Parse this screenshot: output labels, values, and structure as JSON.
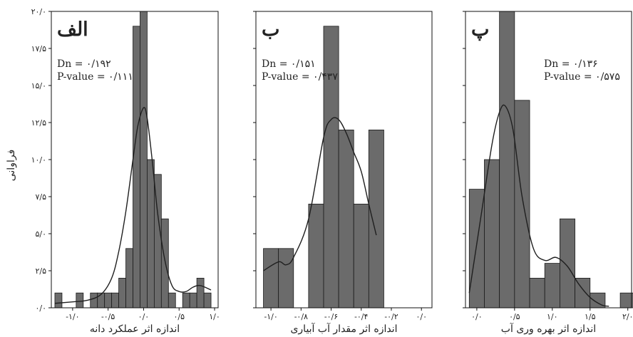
{
  "y_axis": {
    "title": "فراوانی",
    "ylim": [
      0,
      20
    ],
    "ticks": [
      0,
      2.5,
      5,
      7.5,
      10,
      12.5,
      15,
      17.5,
      20
    ],
    "tick_labels": [
      "۰/۰",
      "۲/۵",
      "۵/۰",
      "۷/۵",
      "۱۰/۰",
      "۱۲/۵",
      "۱۵/۰",
      "۱۷/۵",
      "۲۰/۰"
    ]
  },
  "chart_data": [
    {
      "type": "bar",
      "panel": "الف",
      "dn_label": "Dn = ۰/۱۹۲",
      "pvalue_label": "P-value = ۰/۱۱۱",
      "xlabel": "اندازه اثر عملکرد دانه",
      "xlim": [
        -1.3,
        1.05
      ],
      "ylim": [
        0,
        20
      ],
      "x_ticks": [
        -1.0,
        -0.5,
        0.0,
        0.5,
        1.0
      ],
      "x_tick_labels": [
        "-۱/۰",
        "-۰/۵",
        "۰/۰",
        "۰/۵",
        "۱/۰"
      ],
      "bin_width": 0.1,
      "bins": [
        {
          "start": -1.25,
          "value": 1
        },
        {
          "start": -1.15,
          "value": 0
        },
        {
          "start": -1.05,
          "value": 0
        },
        {
          "start": -0.95,
          "value": 1
        },
        {
          "start": -0.85,
          "value": 0
        },
        {
          "start": -0.75,
          "value": 1
        },
        {
          "start": -0.65,
          "value": 1
        },
        {
          "start": -0.55,
          "value": 1
        },
        {
          "start": -0.45,
          "value": 1
        },
        {
          "start": -0.35,
          "value": 2
        },
        {
          "start": -0.25,
          "value": 4
        },
        {
          "start": -0.15,
          "value": 19
        },
        {
          "start": -0.05,
          "value": 20
        },
        {
          "start": 0.05,
          "value": 10
        },
        {
          "start": 0.15,
          "value": 9
        },
        {
          "start": 0.25,
          "value": 6
        },
        {
          "start": 0.35,
          "value": 1
        },
        {
          "start": 0.45,
          "value": 0
        },
        {
          "start": 0.55,
          "value": 1
        },
        {
          "start": 0.65,
          "value": 1
        },
        {
          "start": 0.75,
          "value": 2
        },
        {
          "start": 0.85,
          "value": 1
        }
      ],
      "density_curve": {
        "x": [
          -1.25,
          -1.0,
          -0.8,
          -0.6,
          -0.45,
          -0.35,
          -0.25,
          -0.15,
          -0.08,
          0.0,
          0.05,
          0.12,
          0.2,
          0.3,
          0.4,
          0.5,
          0.6,
          0.7,
          0.8,
          0.95
        ],
        "y": [
          0.3,
          0.4,
          0.5,
          0.9,
          2.0,
          3.8,
          6.5,
          10.0,
          12.3,
          13.5,
          12.8,
          10.0,
          6.3,
          3.2,
          1.5,
          1.1,
          1.1,
          1.4,
          1.5,
          1.2
        ]
      }
    },
    {
      "type": "bar",
      "panel": "ب",
      "dn_label": "Dn = ۰/۱۵۱",
      "pvalue_label": "P-value = ۰/۴۳۷",
      "xlabel": "اندازه اثر مقدار آب آبیاری",
      "xlim": [
        -1.1,
        0.07
      ],
      "ylim": [
        0,
        20
      ],
      "x_ticks": [
        -1.0,
        -0.8,
        -0.6,
        -0.4,
        -0.2,
        0.0
      ],
      "x_tick_labels": [
        "-۱/۰",
        "-۰/۸",
        "-۰/۶",
        "-۰/۴",
        "-۰/۲",
        "۰/۰"
      ],
      "bin_width": 0.1,
      "bins": [
        {
          "start": -1.05,
          "value": 4
        },
        {
          "start": -0.95,
          "value": 4
        },
        {
          "start": -0.85,
          "value": 0
        },
        {
          "start": -0.75,
          "value": 7
        },
        {
          "start": -0.65,
          "value": 19
        },
        {
          "start": -0.55,
          "value": 12
        },
        {
          "start": -0.45,
          "value": 7
        },
        {
          "start": -0.35,
          "value": 12
        }
      ],
      "density_curve": {
        "x": [
          -1.05,
          -0.95,
          -0.9,
          -0.85,
          -0.75,
          -0.65,
          -0.6,
          -0.55,
          -0.5,
          -0.45,
          -0.4,
          -0.35,
          -0.3
        ],
        "y": [
          2.5,
          3.1,
          2.9,
          3.4,
          6.0,
          11.5,
          12.7,
          12.7,
          11.8,
          10.5,
          9.2,
          7.0,
          4.9
        ]
      }
    },
    {
      "type": "bar",
      "panel": "پ",
      "dn_label": "Dn = ۰/۱۳۶",
      "pvalue_label": "P-value = ۰/۵۷۵",
      "xlabel": "اندازه اثر بهره وری آب",
      "xlim": [
        -0.15,
        2.05
      ],
      "ylim": [
        0,
        20
      ],
      "x_ticks": [
        0.0,
        0.5,
        1.0,
        1.5,
        2.0
      ],
      "x_tick_labels": [
        "۰/۰",
        "۰/۵",
        "۱/۰",
        "۱/۵",
        "۲/۰"
      ],
      "bin_width": 0.2,
      "bins": [
        {
          "start": -0.1,
          "value": 8
        },
        {
          "start": 0.1,
          "value": 10
        },
        {
          "start": 0.3,
          "value": 20
        },
        {
          "start": 0.5,
          "value": 14
        },
        {
          "start": 0.7,
          "value": 2
        },
        {
          "start": 0.9,
          "value": 3
        },
        {
          "start": 1.1,
          "value": 6
        },
        {
          "start": 1.3,
          "value": 2
        },
        {
          "start": 1.5,
          "value": 1
        },
        {
          "start": 1.7,
          "value": 0
        },
        {
          "start": 1.9,
          "value": 1
        }
      ],
      "density_curve": {
        "x": [
          -0.1,
          0.05,
          0.2,
          0.3,
          0.38,
          0.48,
          0.6,
          0.75,
          0.9,
          1.05,
          1.2,
          1.35,
          1.5,
          1.65,
          1.75
        ],
        "y": [
          1.0,
          6.0,
          11.0,
          13.2,
          13.6,
          12.0,
          7.5,
          4.0,
          3.2,
          3.4,
          2.8,
          1.6,
          0.7,
          0.2,
          0.1
        ]
      }
    }
  ]
}
